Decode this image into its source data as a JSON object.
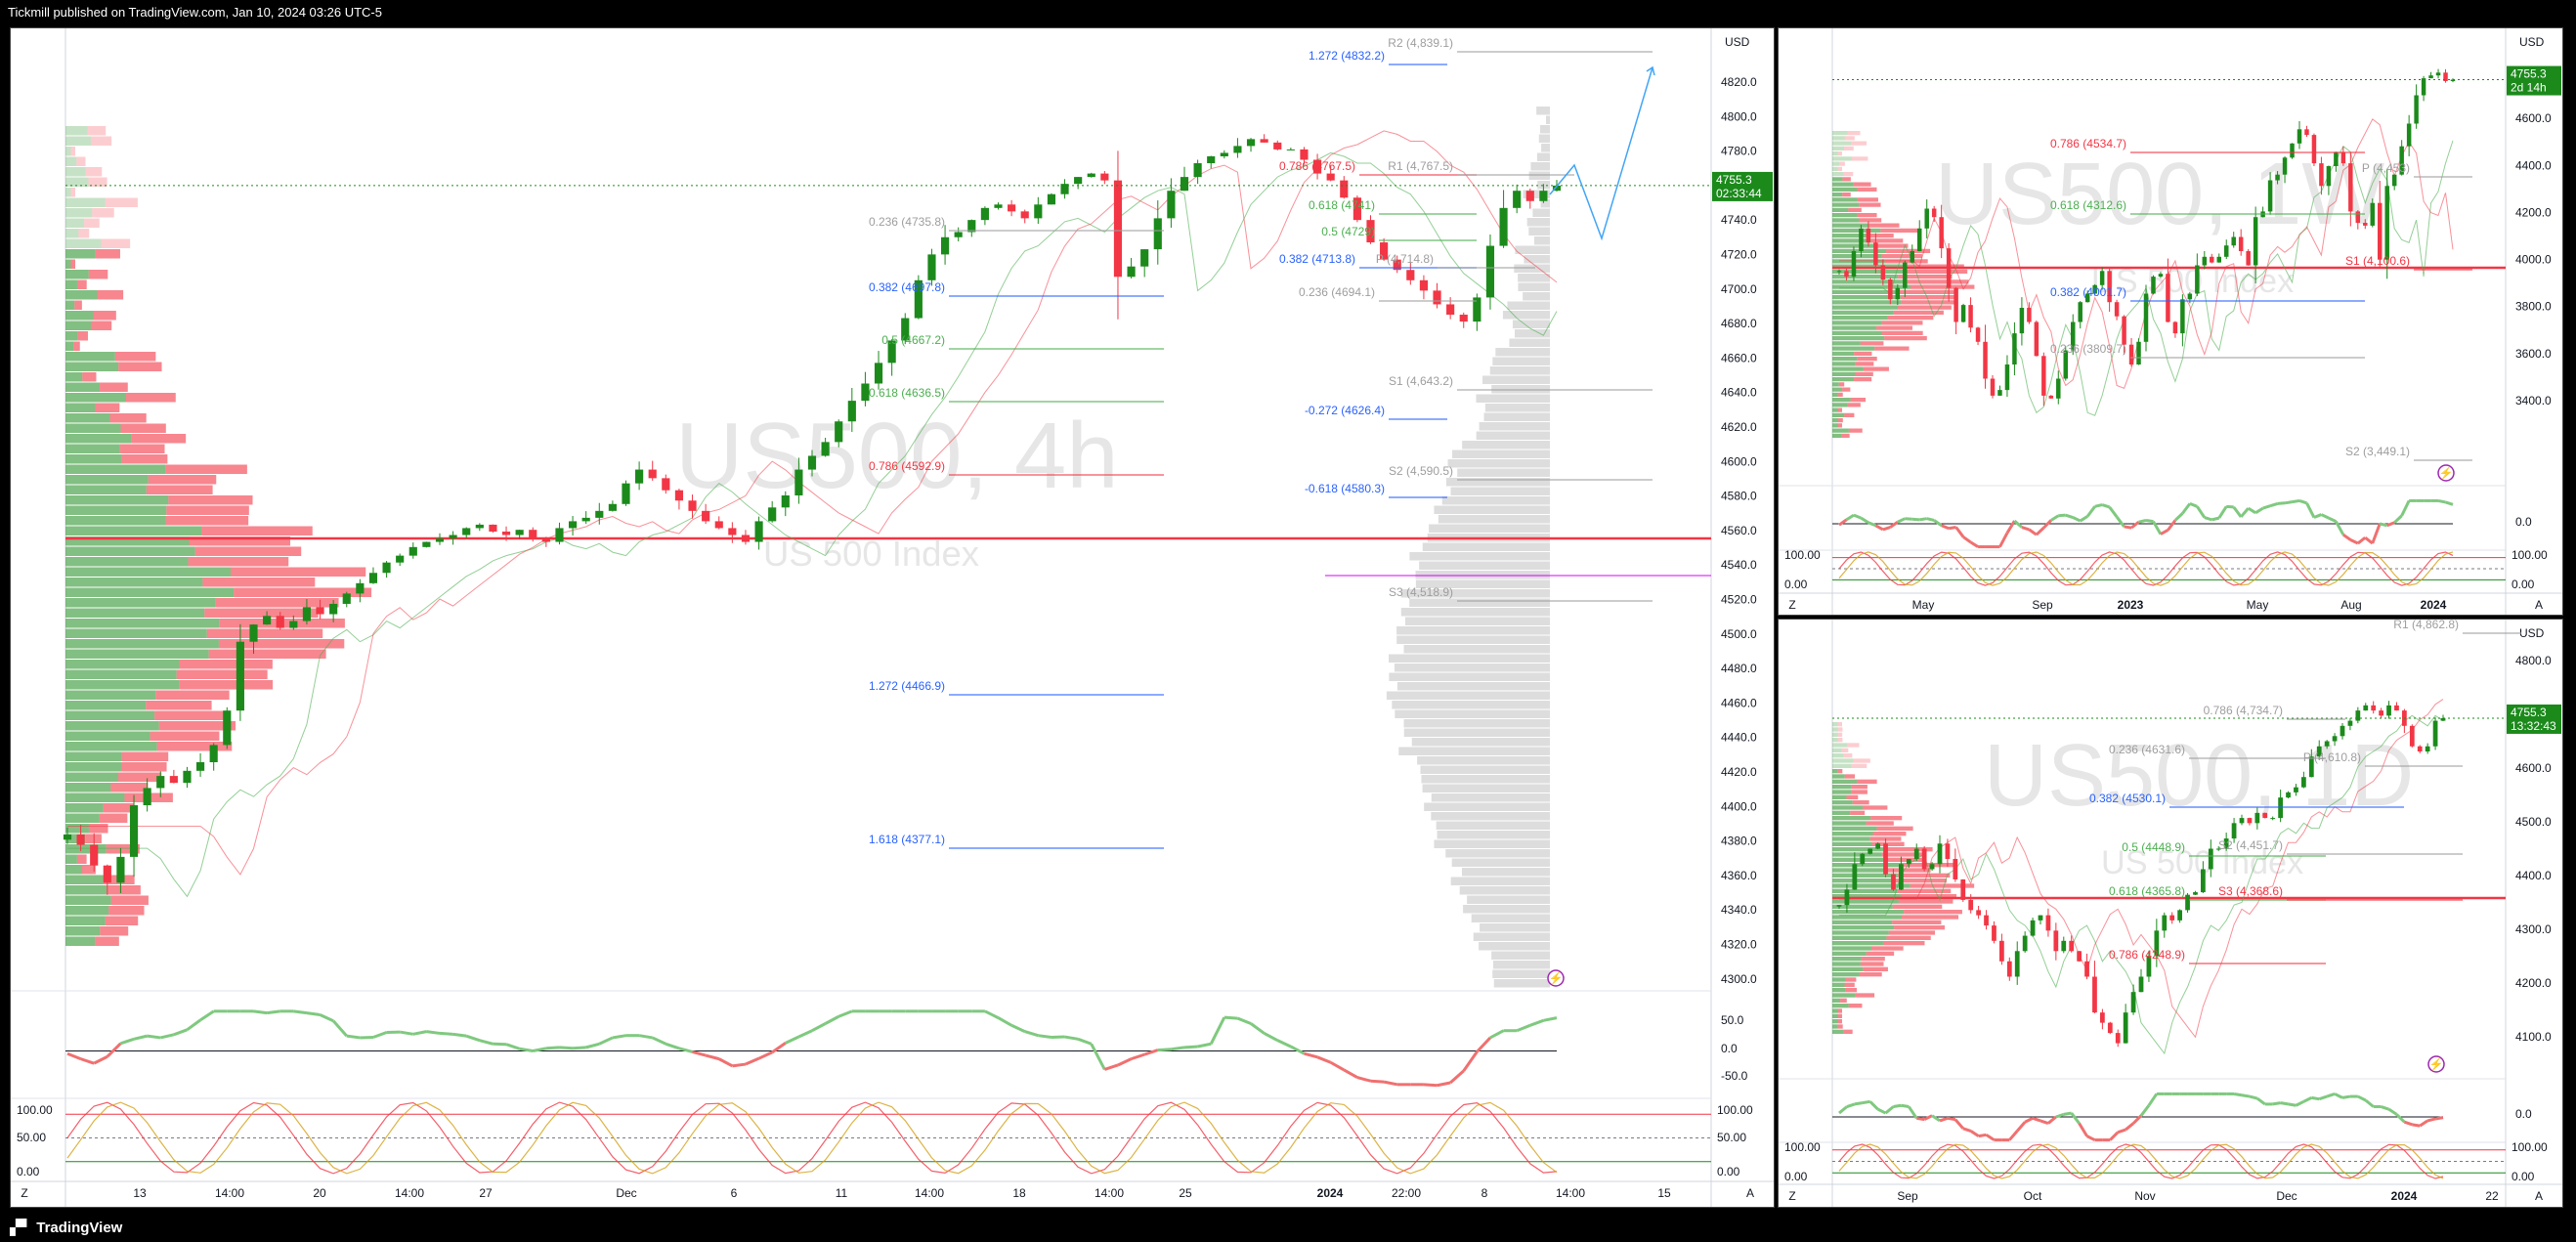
{
  "header": {
    "published": "Tickmill published on TradingView.com, Jan 10, 2024 03:26 UTC-5"
  },
  "footer": {
    "brand": "TradingView"
  },
  "currency": "USD",
  "colors": {
    "up": "#1b8a1b",
    "down": "#f23645",
    "blue": "#2962ff",
    "fibRed": "#f23645",
    "fibGreen": "#4caf50",
    "gray": "#9e9e9e",
    "rsi": "#7fc97f"
  },
  "icons": {
    "flash": "flash-icon"
  },
  "left": {
    "watermark_symbol": "US500, 4h",
    "watermark_desc": "US 500 Index",
    "price": {
      "value": "4755.3",
      "timer": "02:33:44"
    },
    "price_ticks": [
      "4820.0",
      "4800.0",
      "4780.0",
      "4760.0",
      "4740.0",
      "4720.0",
      "4700.0",
      "4680.0",
      "4660.0",
      "4640.0",
      "4620.0",
      "4600.0",
      "4580.0",
      "4560.0",
      "4540.0",
      "4520.0",
      "4500.0",
      "4480.0",
      "4460.0",
      "4440.0",
      "4420.0",
      "4400.0",
      "4380.0",
      "4360.0",
      "4340.0",
      "4320.0",
      "4300.0"
    ],
    "time_ticks": [
      "13",
      "14:00",
      "20",
      "14:00",
      "27",
      "Dec",
      "6",
      "11",
      "14:00",
      "18",
      "14:00",
      "25",
      "2024",
      "22:00",
      "8",
      "14:00",
      "15"
    ],
    "rsi_ticks": [
      "50.0",
      "0.0",
      "-50.0"
    ],
    "stoch_ticks": [
      "100.00",
      "50.00",
      "0.00"
    ],
    "axis_letters": [
      "Z",
      "A"
    ],
    "labels": [
      {
        "t": "R2 (4,839.1)",
        "c": "gray"
      },
      {
        "t": "1.272 (4832.2)",
        "c": "blue"
      },
      {
        "t": "0.786 (4767.5)",
        "c": "fibRed"
      },
      {
        "t": "R1 (4,767.5)",
        "c": "gray"
      },
      {
        "t": "0.618 (4741)",
        "c": "fibGreen"
      },
      {
        "t": "0.5 (4729)",
        "c": "fibGreen"
      },
      {
        "t": "0.382 (4713.8)",
        "c": "blue"
      },
      {
        "t": "P (4,714.8)",
        "c": "gray"
      },
      {
        "t": "0.236 (4694.1)",
        "c": "gray"
      },
      {
        "t": "0.236 (4735.8)",
        "c": "gray"
      },
      {
        "t": "0.382 (4697.8)",
        "c": "blue"
      },
      {
        "t": "0.5 (4667.2)",
        "c": "fibGreen"
      },
      {
        "t": "0.618 (4636.5)",
        "c": "fibGreen"
      },
      {
        "t": "0.786 (4592.9)",
        "c": "fibRed"
      },
      {
        "t": "S1 (4,643.2)",
        "c": "gray"
      },
      {
        "t": "-0.272 (4626.4)",
        "c": "blue"
      },
      {
        "t": "S2 (4,590.5)",
        "c": "gray"
      },
      {
        "t": "-0.618 (4580.3)",
        "c": "blue"
      },
      {
        "t": "S3 (4,518.9)",
        "c": "gray"
      },
      {
        "t": "1.272 (4466.9)",
        "c": "blue"
      },
      {
        "t": "1.618 (4377.1)",
        "c": "blue"
      }
    ]
  },
  "rtop": {
    "watermark_symbol": "US500, 1W",
    "watermark_desc": "US 500 Index",
    "price": {
      "value": "4755.3",
      "timer": "2d 14h"
    },
    "price_ticks": [
      "4800.0",
      "4600.0",
      "4400.0",
      "4200.0",
      "4000.0",
      "3800.0",
      "3600.0",
      "3400.0"
    ],
    "time_ticks": [
      "May",
      "Sep",
      "2023",
      "May",
      "Aug",
      "2024"
    ],
    "rsi_ticks": [
      "0.0"
    ],
    "stoch_ticks": [
      "100.00",
      "0.00"
    ],
    "labels": [
      {
        "t": "0.786 (4534.7)",
        "c": "fibRed"
      },
      {
        "t": "0.618 (4312.6)",
        "c": "fibGreen"
      },
      {
        "t": "0.382 (4001.7)",
        "c": "blue"
      },
      {
        "t": "0.236 (3809.7)",
        "c": "gray"
      },
      {
        "t": "P (4,453)",
        "c": "gray"
      },
      {
        "t": "S1 (4,100.6)",
        "c": "fibRed"
      },
      {
        "t": "S2 (3,449.1)",
        "c": "gray"
      }
    ]
  },
  "rbot": {
    "watermark_symbol": "US500, 1D",
    "watermark_desc": "US 500 Index",
    "price": {
      "value": "4755.3",
      "timer": "13:32:43"
    },
    "price_ticks": [
      "4800.0",
      "4700.0",
      "4600.0",
      "4500.0",
      "4400.0",
      "4300.0",
      "4200.0",
      "4100.0"
    ],
    "time_ticks": [
      "Sep",
      "Oct",
      "Nov",
      "Dec",
      "2024",
      "22"
    ],
    "rsi_ticks": [
      "0.0"
    ],
    "stoch_ticks": [
      "100.00",
      "0.00"
    ],
    "labels": [
      {
        "t": "R1 (4,862.8)",
        "c": "gray"
      },
      {
        "t": "P (4,610.8)",
        "c": "gray"
      },
      {
        "t": "0.236 (4631.6)",
        "c": "gray"
      },
      {
        "t": "0.382 (4530.1)",
        "c": "blue"
      },
      {
        "t": "0.5 (4448.9)",
        "c": "fibGreen"
      },
      {
        "t": "S2 (4,451.7)",
        "c": "gray"
      },
      {
        "t": "0.618 (4365.8)",
        "c": "fibGreen"
      },
      {
        "t": "S3 (4,368.6)",
        "c": "fibRed"
      },
      {
        "t": "0.786 (4248.9)",
        "c": "fibRed"
      },
      {
        "t": "0.786 (4,734.7)",
        "c": "gray"
      }
    ]
  },
  "chart_data": [
    {
      "type": "candlestick",
      "title": "US500, 4h",
      "ylabel": "USD",
      "ylim": [
        4290,
        4835
      ],
      "closes": [
        4378,
        4372,
        4360,
        4350,
        4365,
        4395,
        4405,
        4412,
        4408,
        4415,
        4420,
        4430,
        4450,
        4490,
        4500,
        4505,
        4498,
        4502,
        4510,
        4506,
        4512,
        4518,
        4524,
        4530,
        4536,
        4540,
        4545,
        4548,
        4550,
        4552,
        4556,
        4558,
        4554,
        4552,
        4555,
        4550,
        4548,
        4556,
        4560,
        4562,
        4566,
        4570,
        4582,
        4590,
        4585,
        4578,
        4572,
        4566,
        4560,
        4556,
        4552,
        4548,
        4560,
        4568,
        4575,
        4590,
        4598,
        4606,
        4618,
        4630,
        4640,
        4652,
        4665,
        4678,
        4700,
        4715,
        4725,
        4728,
        4735,
        4742,
        4744,
        4740,
        4736,
        4744,
        4750,
        4756,
        4760,
        4762,
        4758,
        4702,
        4708,
        4718,
        4736,
        4752,
        4760,
        4768,
        4772,
        4774,
        4778,
        4782,
        4780,
        4776,
        4776,
        4770,
        4762,
        4758,
        4748,
        4735,
        4722,
        4712,
        4706,
        4700,
        4694,
        4686,
        4680,
        4676,
        4690,
        4720,
        4742,
        4752,
        4746,
        4752,
        4755
      ],
      "rsi_x": [
        "13",
        "20",
        "27",
        "Dec",
        "6",
        "11",
        "18",
        "25",
        "2024",
        "8",
        "15"
      ],
      "rsi_range": [
        -50,
        50
      ]
    },
    {
      "type": "candlestick",
      "title": "US500, 1W",
      "ylabel": "USD",
      "ylim": [
        3350,
        4850
      ],
      "closes": [
        4080,
        4060,
        4150,
        4230,
        4180,
        4100,
        4050,
        3980,
        4020,
        4110,
        4150,
        4230,
        4300,
        4270,
        4160,
        4020,
        3900,
        3960,
        3880,
        3830,
        3700,
        3640,
        3660,
        3750,
        3860,
        3950,
        3900,
        3780,
        3640,
        3630,
        3700,
        3800,
        3900,
        3970,
        4000,
        4030,
        4080,
        3970,
        3920,
        3820,
        3750,
        3830,
        4000,
        4060,
        4070,
        3900,
        3860,
        3980,
        4000,
        4100,
        4130,
        4110,
        4130,
        4170,
        4200,
        4150,
        4100,
        4270,
        4290,
        4400,
        4420,
        4480,
        4530,
        4580,
        4560,
        4460,
        4380,
        4450,
        4500,
        4460,
        4290,
        4250,
        4240,
        4320,
        4120,
        4380,
        4420,
        4520,
        4600,
        4700,
        4760,
        4770,
        4780,
        4750,
        4755
      ],
      "time_ticks": [
        "May",
        "Sep",
        "2023",
        "May",
        "Aug",
        "2024"
      ]
    },
    {
      "type": "candlestick",
      "title": "US500, 1D",
      "ylabel": "USD",
      "ylim": [
        4060,
        4900
      ],
      "closes": [
        4390,
        4420,
        4470,
        4490,
        4500,
        4510,
        4450,
        4420,
        4470,
        4480,
        4500,
        4460,
        4470,
        4510,
        4480,
        4440,
        4400,
        4380,
        4370,
        4350,
        4320,
        4280,
        4250,
        4300,
        4330,
        4360,
        4370,
        4340,
        4300,
        4320,
        4300,
        4280,
        4250,
        4180,
        4160,
        4140,
        4120,
        4180,
        4220,
        4250,
        4290,
        4340,
        4370,
        4360,
        4380,
        4410,
        4415,
        4460,
        4500,
        4500,
        4520,
        4550,
        4560,
        4550,
        4570,
        4560,
        4560,
        4600,
        4610,
        4620,
        4640,
        4680,
        4700,
        4710,
        4720,
        4740,
        4750,
        4770,
        4780,
        4770,
        4760,
        4780,
        4770,
        4740,
        4700,
        4690,
        4700,
        4750,
        4755
      ],
      "time_ticks": [
        "Sep",
        "Oct",
        "Nov",
        "Dec",
        "2024",
        "22"
      ]
    }
  ]
}
